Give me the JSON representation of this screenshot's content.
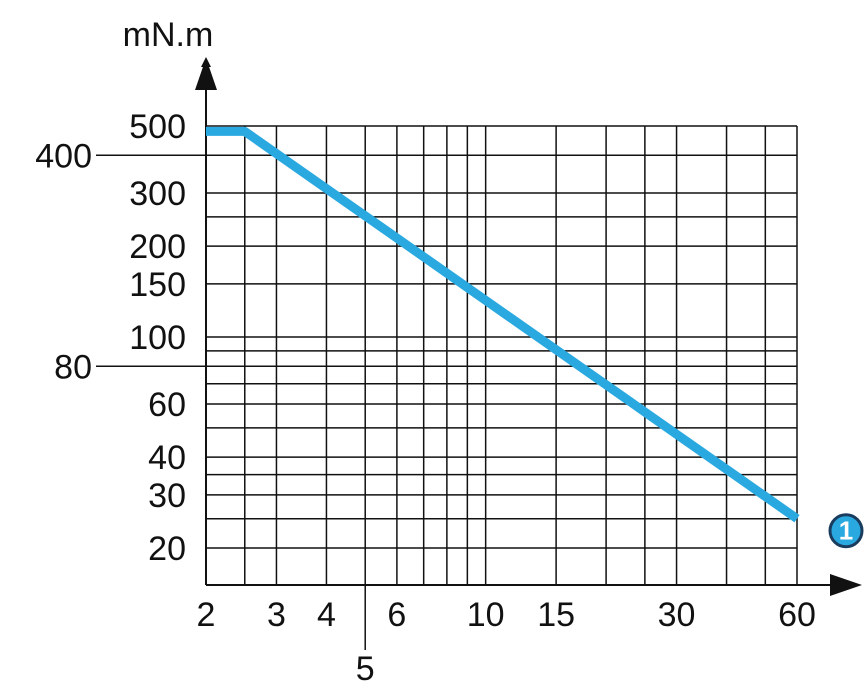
{
  "chart_data": {
    "type": "line",
    "title": "",
    "ylabel": "mN.m",
    "xlabel": "",
    "x_scale": "log",
    "y_scale": "log",
    "xlim": [
      2,
      60
    ],
    "ylim": [
      15,
      500
    ],
    "x_gridlines": [
      2,
      2.5,
      3,
      4,
      5,
      6,
      7,
      8,
      9,
      10,
      15,
      20,
      25,
      30,
      40,
      50,
      60
    ],
    "y_gridlines": [
      20,
      25,
      30,
      35,
      40,
      50,
      60,
      70,
      80,
      90,
      100,
      150,
      200,
      250,
      300,
      400,
      500
    ],
    "x_tick_labels": [
      {
        "value": 2,
        "label": "2"
      },
      {
        "value": 3,
        "label": "3"
      },
      {
        "value": 4,
        "label": "4"
      },
      {
        "value": 5,
        "label": "5"
      },
      {
        "value": 6,
        "label": "6"
      },
      {
        "value": 10,
        "label": "10"
      },
      {
        "value": 15,
        "label": "15"
      },
      {
        "value": 30,
        "label": "30"
      },
      {
        "value": 60,
        "label": "60"
      }
    ],
    "y_tick_labels": [
      {
        "value": 20,
        "label": "20"
      },
      {
        "value": 30,
        "label": "30"
      },
      {
        "value": 40,
        "label": "40"
      },
      {
        "value": 60,
        "label": "60"
      },
      {
        "value": 80,
        "label": "80"
      },
      {
        "value": 100,
        "label": "100"
      },
      {
        "value": 150,
        "label": "150"
      },
      {
        "value": 200,
        "label": "200"
      },
      {
        "value": 300,
        "label": "300"
      },
      {
        "value": 400,
        "label": "400"
      },
      {
        "value": 500,
        "label": "500"
      }
    ],
    "grid": true,
    "series": [
      {
        "color": "#29a9e0",
        "points": [
          [
            2,
            480
          ],
          [
            2.5,
            480
          ],
          [
            60,
            25
          ]
        ],
        "marker_label": "1"
      }
    ]
  }
}
